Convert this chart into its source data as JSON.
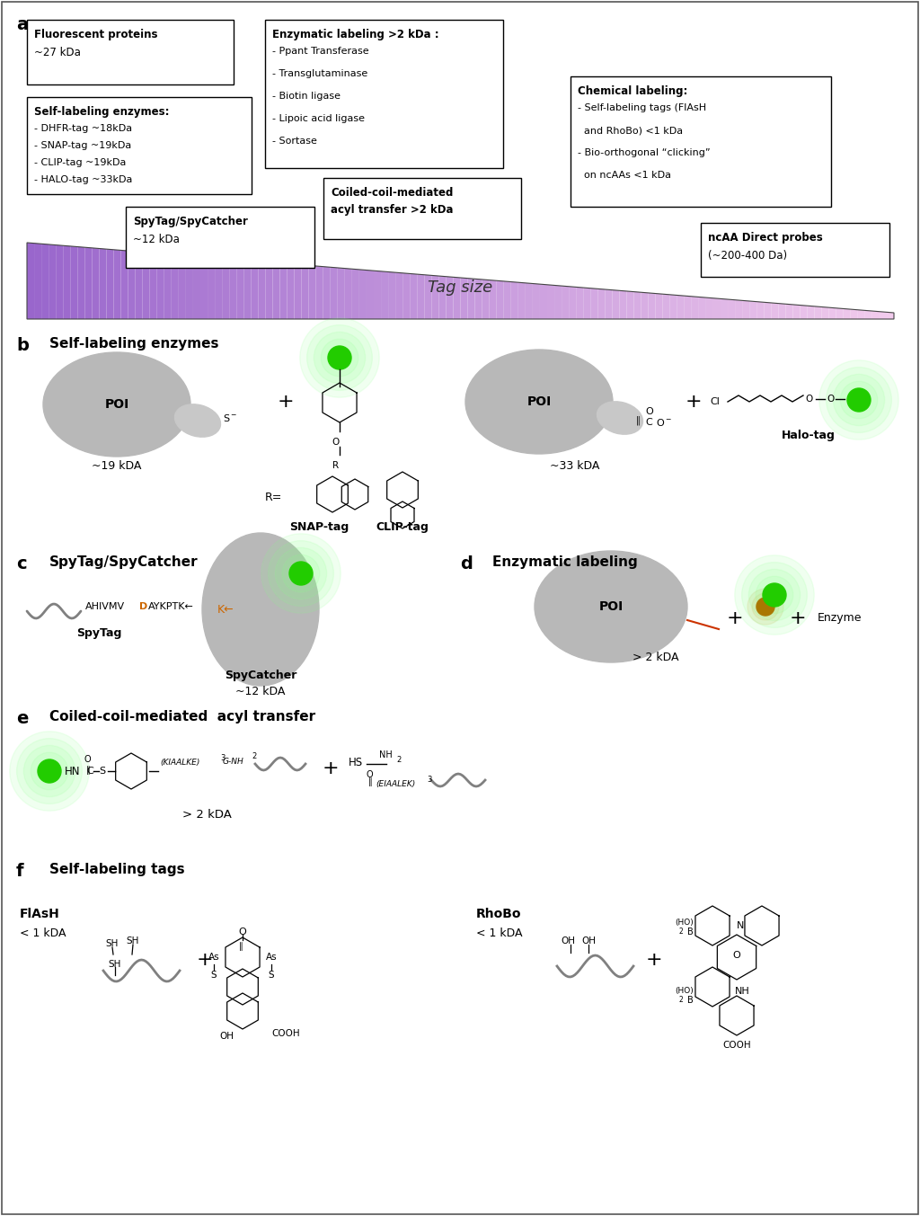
{
  "panel_labels": [
    "a",
    "b",
    "c",
    "d",
    "e",
    "f"
  ],
  "bg_color": "#ffffff",
  "box1_title": "Fluorescent proteins",
  "box1_sub": "~27 kDa",
  "box2_title": "Self-labeling enzymes:",
  "box2_items": [
    "- DHFR-tag ~18kDa",
    "- SNAP-tag ~19kDa",
    "- CLIP-tag ~19kDa",
    "- HALO-tag ~33kDa"
  ],
  "box3_title": "Enzymatic labeling >2 kDa :",
  "box3_items": [
    "- Ppant Transferase",
    "- Transglutaminase",
    "- Biotin ligase",
    "- Lipoic acid ligase",
    "- Sortase"
  ],
  "box4_title": "SpyTag/SpyCatcher",
  "box4_sub": "~12 kDa",
  "box5_line1": "Coiled-coil-mediated",
  "box5_line2": "acyl transfer >2 kDa",
  "box6_title": "Chemical labeling:",
  "box6_items": [
    "- Self-labeling tags (FlAsH",
    "  and RhoBo) <1 kDa",
    "- Bio-orthogonal “clicking”",
    "  on ncAAs <1 kDa"
  ],
  "box7_title": "ncAA Direct probes",
  "box7_sub": "(~200-400 Da)",
  "tag_size": "Tag size",
  "panel_b_title": "Self-labeling enzymes",
  "panel_c_title": "SpyTag/SpyCatcher",
  "panel_d_title": "Enzymatic labeling",
  "panel_e_title": "Coiled-coil-mediated  acyl transfer",
  "panel_f_title": "Self-labeling tags",
  "snap_tag": "SNAP-tag",
  "clip_tag": "CLIP-tag",
  "halo_tag": "Halo-tag",
  "spy_seq1": "AHIVMV",
  "spy_seq_D": "D",
  "spy_seq2": "AYKPTK←",
  "spy_tag_label": "SpyTag",
  "spy_catcher_label": "SpyCatcher",
  "spy_catcher_kda": "~12 kDA",
  "enzyme_label": "Enzyme",
  "flash_label": "FlAsH",
  "flash_kda": "< 1 kDA",
  "rhobo_label": "RhoBo",
  "rhobo_kda": "< 1 kDA"
}
